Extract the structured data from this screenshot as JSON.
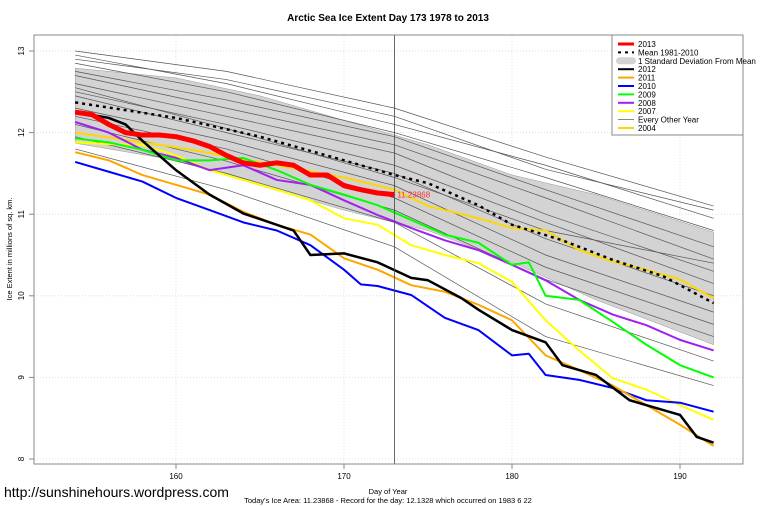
{
  "chart_data": {
    "type": "line",
    "title": "Arctic Sea Ice Extent Day 173 1978 to 2013",
    "xlabel": "Day of Year",
    "ylabel": "Ice Extent in millions of sq. km.",
    "xlim": [
      152,
      193
    ],
    "ylim": [
      7.95,
      13.2
    ],
    "xticks": [
      160,
      170,
      180,
      190
    ],
    "yticks": [
      8,
      9,
      10,
      11,
      12,
      13
    ],
    "grid": true,
    "legend_placement": "top-right",
    "current_day": 173,
    "annotation": {
      "text": "11.23868",
      "x": 173,
      "y": 11.24,
      "color": "#ff3333"
    },
    "footer": "Today's Ice Area: 11.23868  - Record for the day: 12.1328 which occurred on 1983 6 22",
    "std_band": {
      "label": "1 Standard Deviation From Mean",
      "color": "#d3d3d3",
      "days": [
        154,
        160,
        165,
        170,
        175,
        180,
        185,
        192
      ],
      "upper": [
        12.79,
        12.67,
        12.45,
        12.15,
        11.85,
        11.48,
        11.24,
        10.78
      ],
      "lower": [
        11.87,
        11.66,
        11.35,
        11.05,
        10.8,
        10.41,
        9.95,
        9.4
      ]
    },
    "grey_series": {
      "label": "Every Other Year",
      "color": "#555555",
      "days": [
        154,
        163,
        173,
        182,
        192
      ],
      "lines": [
        [
          13.0,
          12.75,
          12.3,
          11.7,
          11.1
        ],
        [
          12.95,
          12.6,
          12.1,
          11.6,
          10.95
        ],
        [
          12.85,
          12.5,
          12.0,
          11.45,
          10.8
        ],
        [
          12.75,
          12.4,
          11.95,
          11.3,
          10.6
        ],
        [
          12.7,
          12.3,
          11.85,
          11.2,
          10.45
        ],
        [
          12.6,
          12.2,
          11.75,
          11.0,
          10.3
        ],
        [
          12.5,
          12.1,
          11.6,
          10.9,
          10.15
        ],
        [
          12.45,
          12.0,
          11.5,
          10.7,
          10.0
        ],
        [
          12.3,
          11.9,
          11.35,
          10.5,
          9.8
        ],
        [
          12.2,
          11.8,
          11.2,
          10.35,
          9.65
        ],
        [
          12.1,
          11.65,
          11.05,
          10.2,
          9.5
        ],
        [
          11.95,
          11.5,
          10.9,
          9.9,
          9.2
        ],
        [
          11.8,
          11.3,
          10.6,
          9.5,
          8.9
        ],
        [
          12.55,
          12.05,
          11.45,
          10.8,
          10.4
        ],
        [
          12.9,
          12.65,
          12.2,
          11.55,
          11.05
        ]
      ]
    },
    "series": [
      {
        "name": "2004",
        "color": "#ffd700",
        "width": 2,
        "days": [
          154,
          160,
          162,
          166,
          170,
          173,
          175,
          178,
          180,
          182,
          184,
          186,
          188,
          190,
          192
        ],
        "values": [
          12.0,
          11.82,
          11.75,
          11.6,
          11.45,
          11.3,
          11.1,
          10.95,
          10.83,
          10.8,
          10.56,
          10.42,
          10.32,
          10.2,
          9.97
        ]
      },
      {
        "name": "2007",
        "color": "#ffff00",
        "width": 2,
        "days": [
          154,
          156,
          158,
          160,
          162,
          164,
          166,
          168,
          170,
          172,
          174,
          176,
          178,
          180,
          182,
          184,
          186,
          188,
          190,
          192
        ],
        "values": [
          11.88,
          11.86,
          11.85,
          11.72,
          11.54,
          11.42,
          11.3,
          11.17,
          10.95,
          10.87,
          10.62,
          10.5,
          10.4,
          10.17,
          9.7,
          9.33,
          8.99,
          8.85,
          8.66,
          8.48
        ]
      },
      {
        "name": "2008",
        "color": "#a020f0",
        "width": 2,
        "days": [
          154,
          156,
          158,
          160,
          162,
          164,
          166,
          168,
          170,
          172,
          174,
          176,
          178,
          180,
          182,
          184,
          186,
          188,
          190,
          192
        ],
        "values": [
          12.13,
          12.0,
          11.79,
          11.69,
          11.54,
          11.6,
          11.42,
          11.36,
          11.17,
          10.99,
          10.83,
          10.68,
          10.56,
          10.38,
          10.19,
          9.95,
          9.77,
          9.64,
          9.46,
          9.33
        ]
      },
      {
        "name": "2009",
        "color": "#00ff00",
        "width": 2,
        "days": [
          154,
          156,
          158,
          160,
          162,
          164,
          166,
          168,
          170,
          172,
          174,
          176,
          178,
          180,
          181,
          182,
          184,
          186,
          188,
          190,
          192
        ],
        "values": [
          11.93,
          11.88,
          11.79,
          11.66,
          11.66,
          11.69,
          11.54,
          11.36,
          11.24,
          11.11,
          10.93,
          10.75,
          10.65,
          10.38,
          10.41,
          10.0,
          9.95,
          9.68,
          9.4,
          9.15,
          9.0
        ]
      },
      {
        "name": "2010",
        "color": "#0000ff",
        "width": 2,
        "days": [
          154,
          156,
          158,
          160,
          162,
          164,
          166,
          168,
          170,
          171,
          172,
          174,
          176,
          178,
          180,
          181,
          182,
          184,
          186,
          188,
          190,
          192
        ],
        "values": [
          11.64,
          11.52,
          11.4,
          11.2,
          11.05,
          10.9,
          10.8,
          10.62,
          10.32,
          10.14,
          10.12,
          10.01,
          9.73,
          9.58,
          9.27,
          9.29,
          9.03,
          8.97,
          8.87,
          8.72,
          8.69,
          8.58
        ]
      },
      {
        "name": "2011",
        "color": "#ffa500",
        "width": 2,
        "days": [
          154,
          156,
          158,
          160,
          162,
          164,
          166,
          168,
          170,
          172,
          174,
          176,
          178,
          180,
          182,
          184,
          186,
          188,
          190,
          192
        ],
        "values": [
          11.76,
          11.66,
          11.48,
          11.36,
          11.24,
          11.03,
          10.87,
          10.75,
          10.46,
          10.32,
          10.13,
          10.05,
          9.89,
          9.7,
          9.27,
          9.09,
          8.9,
          8.66,
          8.42,
          8.16
        ]
      },
      {
        "name": "2012",
        "color": "#000000",
        "width": 2.5,
        "days": [
          154,
          156,
          157,
          158,
          160,
          162,
          164,
          166,
          167,
          168,
          170,
          172,
          174,
          175,
          177,
          178,
          180,
          182,
          183,
          185,
          187,
          188,
          189,
          190,
          191,
          192
        ],
        "values": [
          12.25,
          12.18,
          12.1,
          11.9,
          11.54,
          11.24,
          11.01,
          10.87,
          10.8,
          10.5,
          10.52,
          10.41,
          10.22,
          10.19,
          9.97,
          9.83,
          9.58,
          9.43,
          9.15,
          9.03,
          8.72,
          8.66,
          8.6,
          8.54,
          8.27,
          8.2
        ]
      },
      {
        "name": "Mean 1981-2010",
        "color": "#000000",
        "width": 2.5,
        "dashed": true,
        "days": [
          154,
          160,
          165,
          170,
          173,
          175,
          178,
          180,
          183,
          186,
          189,
          192
        ],
        "values": [
          12.37,
          12.18,
          11.95,
          11.66,
          11.48,
          11.38,
          11.11,
          10.87,
          10.68,
          10.44,
          10.24,
          9.91
        ]
      },
      {
        "name": "2013",
        "color": "#ff0000",
        "width": 5,
        "days": [
          154,
          155,
          156,
          157,
          158,
          159,
          160,
          161,
          162,
          163,
          164,
          165,
          166,
          167,
          168,
          169,
          170,
          171,
          172,
          173
        ],
        "values": [
          12.25,
          12.22,
          12.1,
          12.0,
          11.97,
          11.97,
          11.95,
          11.9,
          11.83,
          11.72,
          11.63,
          11.6,
          11.63,
          11.6,
          11.48,
          11.48,
          11.35,
          11.3,
          11.26,
          11.24
        ]
      }
    ],
    "legend": [
      {
        "label": "2013",
        "color": "#ff0000",
        "kind": "thick"
      },
      {
        "label": "Mean 1981-2010",
        "color": "#000000",
        "kind": "dashed"
      },
      {
        "label": "1 Standard Deviation From Mean",
        "color": "#d3d3d3",
        "kind": "band"
      },
      {
        "label": "2012",
        "color": "#000000",
        "kind": "line"
      },
      {
        "label": "2011",
        "color": "#ffa500",
        "kind": "line"
      },
      {
        "label": "2010",
        "color": "#0000ff",
        "kind": "line"
      },
      {
        "label": "2009",
        "color": "#00ff00",
        "kind": "line"
      },
      {
        "label": "2008",
        "color": "#a020f0",
        "kind": "line"
      },
      {
        "label": "2007",
        "color": "#ffff00",
        "kind": "line"
      },
      {
        "label": "Every Other Year",
        "color": "#555555",
        "kind": "thin"
      },
      {
        "label": "2004",
        "color": "#ffd700",
        "kind": "line"
      }
    ]
  },
  "watermark": "http://sunshinehours.wordpress.com"
}
